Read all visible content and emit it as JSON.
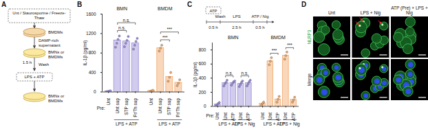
{
  "panel_labels": [
    "A",
    "B",
    "C",
    "D"
  ],
  "diagram": {
    "pretreatment": "Unt / Staurosporine / Freeze-Thaw",
    "source_cells": "BMDMs",
    "supernatant": "DAMP-rich supernatant",
    "target_cells": "BMNs or BMDMs",
    "incubation": "1.5 h",
    "wash": "Wash",
    "stimulus": "LPS + ATP",
    "final_cells": "BMNs or BMDMs"
  },
  "chart_data": [
    {
      "type": "bar",
      "y_label": "IL-1β (pg/ml)",
      "ylim": [
        0,
        1600
      ],
      "yticks": [
        0,
        400,
        800,
        1200,
        1600
      ],
      "category_prefix": "Pre:",
      "categories": [
        "Unt",
        "Unt sup",
        "STP sup",
        "Fr/Th sup"
      ],
      "treatments": [
        null,
        "LPS + ATP",
        "LPS + ATP",
        "LPS + ATP"
      ],
      "series": [
        {
          "name": "BMN",
          "color": "#9a8cd8",
          "values": [
            15,
            1060,
            1040,
            1000
          ],
          "points": [
            [
              5,
              10,
              15,
              25
            ],
            [
              920,
              1000,
              1080,
              1150
            ],
            [
              930,
              1000,
              1060,
              1140
            ],
            [
              880,
              960,
              1040,
              1100
            ]
          ],
          "comparisons": [
            {
              "from": 1,
              "to": 2,
              "label": "n.s."
            },
            {
              "from": 1,
              "to": 3,
              "label": "n.s."
            }
          ]
        },
        {
          "name": "BMDM",
          "color": "#f2a766",
          "values": [
            25,
            900,
            310,
            190
          ],
          "points": [
            [
              10,
              20,
              35
            ],
            [
              840,
              900,
              960
            ],
            [
              220,
              300,
              400
            ],
            [
              130,
              180,
              250
            ]
          ],
          "comparisons": [
            {
              "from": 1,
              "to": 2,
              "label": "***"
            },
            {
              "from": 1,
              "to": 3,
              "label": "***"
            }
          ]
        }
      ]
    },
    {
      "type": "bar",
      "y_label": "IL-1β (pg/ml)",
      "ylim": [
        0,
        900
      ],
      "yticks": [
        0,
        200,
        400,
        600,
        800
      ],
      "category_prefix": "Pre:",
      "categories": [
        "Unt",
        "Unt",
        "ATP",
        "Unt",
        "ATP"
      ],
      "treatments": [
        null,
        "LPS + ATP",
        "LPS + ATP",
        "LPS + Nig",
        "LPS + Nig"
      ],
      "series": [
        {
          "name": "BMN",
          "color": "#9a8cd8",
          "values": [
            30,
            330,
            330,
            320,
            330
          ],
          "points": [
            [
              10,
              25,
              40,
              55
            ],
            [
              290,
              320,
              340,
              370
            ],
            [
              300,
              330,
              350,
              360
            ],
            [
              280,
              310,
              340,
              360
            ],
            [
              290,
              320,
              350,
              370
            ]
          ],
          "comparisons": [
            {
              "from": 1,
              "to": 2,
              "label": "n.s."
            },
            {
              "from": 3,
              "to": 4,
              "label": "n.s."
            }
          ]
        },
        {
          "name": "BMDM",
          "color": "#f2a766",
          "values": [
            40,
            640,
            100,
            720,
            95
          ],
          "points": [
            [
              20,
              40,
              60
            ],
            [
              590,
              640,
              690
            ],
            [
              60,
              100,
              140
            ],
            [
              670,
              720,
              770
            ],
            [
              60,
              90,
              130
            ]
          ],
          "comparisons": [
            {
              "from": 1,
              "to": 2,
              "label": "***"
            },
            {
              "from": 3,
              "to": 4,
              "label": "***"
            }
          ]
        }
      ]
    }
  ],
  "timeline": {
    "pretreatment": "ATP",
    "steps": [
      "Wash",
      "LPS",
      "ATP / Nig"
    ],
    "durations": [
      "0.5 h",
      "2.5 h",
      "0.5 h"
    ]
  },
  "images": {
    "columns": [
      "Unt",
      "LPS + Nig",
      "ATP (Pre) + LPS + Nig"
    ],
    "rows": [
      "NLRP3",
      "Merge"
    ]
  }
}
